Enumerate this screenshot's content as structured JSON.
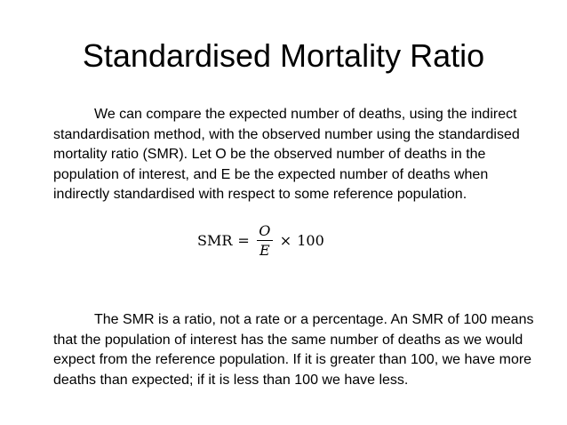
{
  "slide": {
    "title": "Standardised Mortality Ratio",
    "paragraph1": "We can compare the expected number of deaths, using the indirect standardisation method, with the observed number using the standardised mortality ratio (SMR). Let O be the observed number of deaths in the population of interest, and E be the expected number of deaths when indirectly standardised with respect to some reference population.",
    "formula": {
      "lhs": "SMR",
      "equals": "=",
      "numerator": "O",
      "denominator": "E",
      "times": "×",
      "factor": "100"
    },
    "paragraph2": "The SMR is a ratio, not a rate or a percentage. An SMR of 100 means that the population of interest has the same number of deaths as we would expect from the reference population. If it is greater than 100, we have more deaths than expected; if it is less than 100 we have less."
  }
}
